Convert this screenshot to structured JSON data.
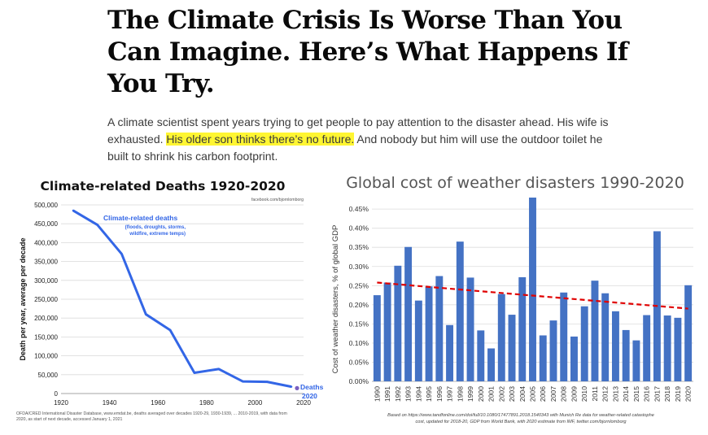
{
  "article": {
    "headline": "The Climate Crisis Is Worse Than You Can Imagine. Here’s What Happens If You Try.",
    "dek_before": "A climate scientist spent years trying to get people to pay attention to the disaster ahead. His wife is exhausted. ",
    "dek_highlight": "His older son thinks there’s no future.",
    "dek_after": " And nobody but him will use the outdoor toilet he built to shrink his carbon footprint."
  },
  "colors": {
    "line": "#3366e6",
    "bar": "#4472c4",
    "trend": "#e00000",
    "highlight": "#fff632"
  },
  "chart_data": [
    {
      "type": "line",
      "title": "Climate-related Deaths 1920-2020",
      "source_tag": "facebook.com/bjornlomborg",
      "ylabel": "Death per year, average per decade",
      "xlabel": "",
      "x": [
        1925,
        1935,
        1945,
        1955,
        1965,
        1975,
        1985,
        1995,
        2005,
        2015
      ],
      "values": [
        485000,
        447000,
        370000,
        210000,
        168000,
        55000,
        65000,
        32000,
        31000,
        18000
      ],
      "point_2020": {
        "x": 2020,
        "value": 10000,
        "label_line1": "Deaths",
        "label_line2": "2020"
      },
      "xlim": [
        1920,
        2020
      ],
      "ylim": [
        0,
        500000
      ],
      "xticks": [
        "1920",
        "1940",
        "1960",
        "1980",
        "2000",
        "2020"
      ],
      "yticks": [
        "0",
        "50,000",
        "100,000",
        "150,000",
        "200,000",
        "250,000",
        "300,000",
        "350,000",
        "400,000",
        "450,000",
        "500,000"
      ],
      "legend_title": "Climate-related deaths",
      "legend_sub_1": "(floods, droughts, storms,",
      "legend_sub_2": "wildfire, extreme temps)",
      "footnote_1": "OFDA/CRED International Disaster Database, www.emdat.be, deaths averaged over decades 1920-29, 1930-1939, ... 2010-2019, with data from",
      "footnote_2": "2020, as start of next decade, accessed January 1, 2021"
    },
    {
      "type": "bar",
      "title": "Global cost of weather disasters 1990-2020",
      "ylabel": "Cost of weather disasters, % of global GDP",
      "xlabel": "",
      "categories": [
        "1990",
        "1991",
        "1992",
        "1993",
        "1994",
        "1995",
        "1996",
        "1997",
        "1998",
        "1999",
        "2000",
        "2001",
        "2002",
        "2003",
        "2004",
        "2005",
        "2006",
        "2007",
        "2008",
        "2009",
        "2010",
        "2011",
        "2012",
        "2013",
        "2014",
        "2015",
        "2016",
        "2017",
        "2018",
        "2019",
        "2020"
      ],
      "values": [
        0.225,
        0.258,
        0.302,
        0.351,
        0.211,
        0.248,
        0.275,
        0.147,
        0.365,
        0.271,
        0.133,
        0.086,
        0.228,
        0.174,
        0.272,
        0.48,
        0.12,
        0.159,
        0.232,
        0.117,
        0.196,
        0.263,
        0.23,
        0.183,
        0.134,
        0.107,
        0.173,
        0.392,
        0.172,
        0.166,
        0.251
      ],
      "trend": {
        "start": 0.258,
        "end": 0.19
      },
      "ylim": [
        0,
        0.48
      ],
      "yticks": [
        "0.00%",
        "0.05%",
        "0.10%",
        "0.15%",
        "0.20%",
        "0.25%",
        "0.30%",
        "0.35%",
        "0.40%",
        "0.45%"
      ],
      "footnote_1": "Based on https://www.tandfonline.com/doi/full/10.1080/17477891.2018.1540343 with Munich Re data for weather-related catastophe",
      "footnote_2": "cost, updated for 2018-20, GDP from World Bank, with 2020 estimate from IMF, twitter.com/bjornlomborg"
    }
  ]
}
